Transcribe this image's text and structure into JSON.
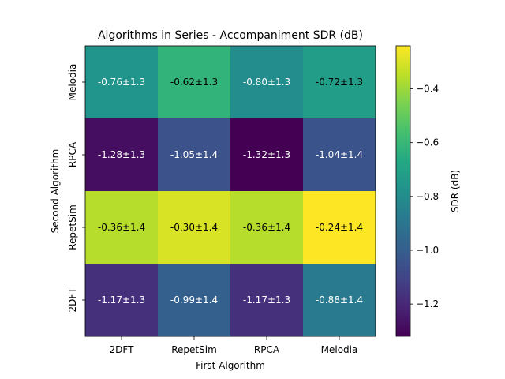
{
  "chart_data": {
    "type": "heatmap",
    "title": "Algorithms in Series - Accompaniment SDR (dB)",
    "xlabel": "First Algorithm",
    "ylabel": "Second Algorithm",
    "x_categories": [
      "2DFT",
      "RepetSim",
      "RPCA",
      "Melodia"
    ],
    "y_categories": [
      "Melodia",
      "RPCA",
      "RepetSim",
      "2DFT"
    ],
    "values": [
      [
        -0.76,
        -0.62,
        -0.8,
        -0.72
      ],
      [
        -1.28,
        -1.05,
        -1.32,
        -1.04
      ],
      [
        -0.36,
        -0.3,
        -0.36,
        -0.24
      ],
      [
        -1.17,
        -0.99,
        -1.17,
        -0.88
      ]
    ],
    "labels": [
      [
        "-0.76±1.3",
        "-0.62±1.3",
        "-0.80±1.3",
        "-0.72±1.3"
      ],
      [
        "-1.28±1.3",
        "-1.05±1.4",
        "-1.32±1.3",
        "-1.04±1.4"
      ],
      [
        "-0.36±1.4",
        "-0.30±1.4",
        "-0.36±1.4",
        "-0.24±1.4"
      ],
      [
        "-1.17±1.3",
        "-0.99±1.4",
        "-1.17±1.3",
        "-0.88±1.4"
      ]
    ],
    "colormap": "viridis",
    "colorbar": {
      "label": "SDR (dB)",
      "vmin": -1.32,
      "vmax": -0.24,
      "ticks": [
        -1.2,
        -1.0,
        -0.8,
        -0.6,
        -0.4
      ],
      "tick_labels": [
        "−1.2",
        "−1.0",
        "−0.8",
        "−0.6",
        "−0.4"
      ]
    },
    "grid": false
  }
}
